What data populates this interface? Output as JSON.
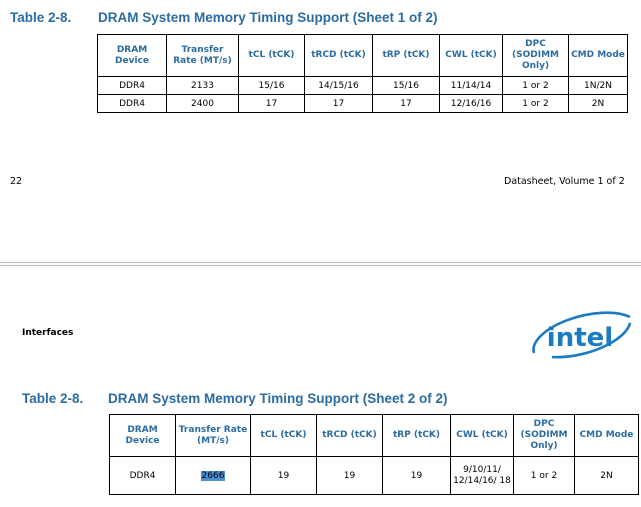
{
  "sheet1": {
    "table_number": "Table 2-8.",
    "title": "DRAM System Memory Timing Support (Sheet 1 of 2)",
    "headers": [
      "DRAM Device",
      "Transfer Rate (MT/s)",
      "tCL (tCK)",
      "tRCD (tCK)",
      "tRP (tCK)",
      "CWL (tCK)",
      "DPC (SODIMM Only)",
      "CMD Mode"
    ],
    "rows": [
      [
        "DDR4",
        "2133",
        "15/16",
        "14/15/16",
        "15/16",
        "11/14/14",
        "1 or 2",
        "1N/2N"
      ],
      [
        "DDR4",
        "2400",
        "17",
        "17",
        "17",
        "12/16/16",
        "1 or 2",
        "2N"
      ]
    ]
  },
  "footer": {
    "page_number": "22",
    "doc_label": "Datasheet, Volume 1 of 2"
  },
  "header": {
    "section_label": "Interfaces",
    "logo_text": "intel"
  },
  "sheet2": {
    "table_number": "Table 2-8.",
    "title": "DRAM System Memory Timing Support (Sheet 2 of 2)",
    "headers": [
      "DRAM Device",
      "Transfer Rate (MT/s)",
      "tCL (tCK)",
      "tRCD (tCK)",
      "tRP (tCK)",
      "CWL (tCK)",
      "DPC (SODIMM Only)",
      "CMD Mode"
    ],
    "rows": [
      [
        "DDR4",
        "2666",
        "19",
        "19",
        "19",
        "9/10/11/ 12/14/16/ 18",
        "1 or 2",
        "2N"
      ]
    ],
    "highlighted_cell": "2666"
  }
}
